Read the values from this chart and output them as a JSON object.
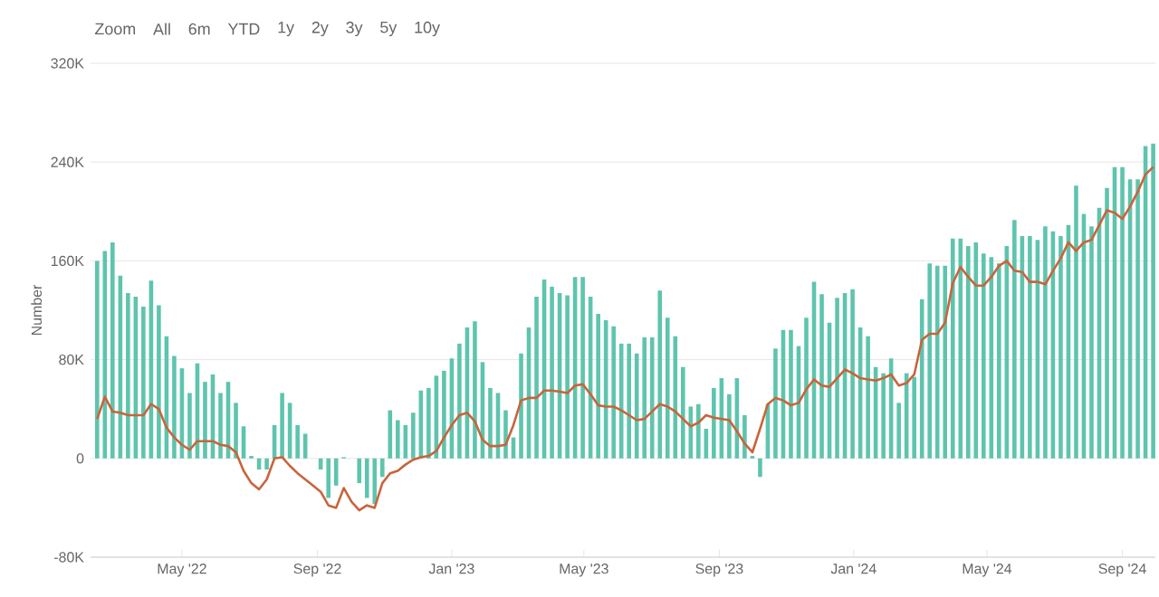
{
  "chart_data": {
    "type": "bar",
    "ylabel": "Number",
    "grid": "y",
    "annotations": [
      "Zoom",
      "All",
      "6m",
      "YTD",
      "1y",
      "2y",
      "3y",
      "5y",
      "10y"
    ],
    "xlim": [
      "2022-02-07",
      "2024-10-01"
    ],
    "xticks": [
      {
        "value": "2022-05-01",
        "label": "May '22"
      },
      {
        "value": "2022-09-01",
        "label": "Sep '22"
      },
      {
        "value": "2023-01-01",
        "label": "Jan '23"
      },
      {
        "value": "2023-05-01",
        "label": "May '23"
      },
      {
        "value": "2023-09-01",
        "label": "Sep '23"
      },
      {
        "value": "2024-01-01",
        "label": "Jan '24"
      },
      {
        "value": "2024-05-01",
        "label": "May '24"
      },
      {
        "value": "2024-09-01",
        "label": "Sep '24"
      }
    ],
    "ylim": [
      -80000,
      320000
    ],
    "yticks": [
      {
        "value": -80000,
        "label": "-80K"
      },
      0,
      {
        "value": 80000,
        "label": "80K"
      },
      {
        "value": 160000,
        "label": "160K"
      },
      {
        "value": 240000,
        "label": "240K"
      },
      {
        "value": 320000,
        "label": "320K"
      }
    ],
    "x": [
      "2022-02-13",
      "2022-02-20",
      "2022-02-27",
      "2022-03-06",
      "2022-03-13",
      "2022-03-20",
      "2022-03-27",
      "2022-04-03",
      "2022-04-10",
      "2022-04-17",
      "2022-04-24",
      "2022-05-01",
      "2022-05-08",
      "2022-05-15",
      "2022-05-22",
      "2022-05-29",
      "2022-06-05",
      "2022-06-12",
      "2022-06-19",
      "2022-06-26",
      "2022-07-03",
      "2022-07-10",
      "2022-07-17",
      "2022-07-24",
      "2022-07-31",
      "2022-08-07",
      "2022-08-14",
      "2022-08-21",
      "2022-08-28",
      "2022-09-04",
      "2022-09-11",
      "2022-09-18",
      "2022-09-25",
      "2022-10-02",
      "2022-10-09",
      "2022-10-16",
      "2022-10-23",
      "2022-10-30",
      "2022-11-06",
      "2022-11-13",
      "2022-11-20",
      "2022-11-27",
      "2022-12-04",
      "2022-12-11",
      "2022-12-18",
      "2022-12-25",
      "2023-01-01",
      "2023-01-08",
      "2023-01-15",
      "2023-01-22",
      "2023-01-29",
      "2023-02-05",
      "2023-02-12",
      "2023-02-19",
      "2023-02-26",
      "2023-03-05",
      "2023-03-12",
      "2023-03-19",
      "2023-03-26",
      "2023-04-02",
      "2023-04-09",
      "2023-04-16",
      "2023-04-23",
      "2023-04-30",
      "2023-05-07",
      "2023-05-14",
      "2023-05-21",
      "2023-05-28",
      "2023-06-04",
      "2023-06-11",
      "2023-06-18",
      "2023-06-25",
      "2023-07-02",
      "2023-07-09",
      "2023-07-16",
      "2023-07-23",
      "2023-07-30",
      "2023-08-06",
      "2023-08-13",
      "2023-08-20",
      "2023-08-27",
      "2023-09-03",
      "2023-09-10",
      "2023-09-17",
      "2023-09-24",
      "2023-10-01",
      "2023-10-08",
      "2023-10-15",
      "2023-10-22",
      "2023-10-29",
      "2023-11-05",
      "2023-11-12",
      "2023-11-19",
      "2023-11-26",
      "2023-12-03",
      "2023-12-10",
      "2023-12-17",
      "2023-12-24",
      "2023-12-31",
      "2024-01-07",
      "2024-01-14",
      "2024-01-21",
      "2024-01-28",
      "2024-02-04",
      "2024-02-11",
      "2024-02-18",
      "2024-02-25",
      "2024-03-03",
      "2024-03-10",
      "2024-03-17",
      "2024-03-24",
      "2024-03-31",
      "2024-04-07",
      "2024-04-14",
      "2024-04-21",
      "2024-04-28",
      "2024-05-05",
      "2024-05-12",
      "2024-05-19",
      "2024-05-26",
      "2024-06-02",
      "2024-06-09",
      "2024-06-16",
      "2024-06-23",
      "2024-06-30",
      "2024-07-07",
      "2024-07-14",
      "2024-07-21",
      "2024-07-28",
      "2024-08-04",
      "2024-08-11",
      "2024-08-18",
      "2024-08-25",
      "2024-09-01",
      "2024-09-08",
      "2024-09-15",
      "2024-09-22",
      "2024-09-29"
    ],
    "series": [
      {
        "color": "#5ec4ae",
        "values": [
          160000,
          168000,
          175000,
          148000,
          134000,
          131000,
          123000,
          144000,
          124000,
          99000,
          83000,
          73000,
          53000,
          77000,
          62000,
          68000,
          53000,
          62000,
          45000,
          26000,
          2000,
          -9000,
          -9000,
          27000,
          53000,
          45000,
          27000,
          20000,
          0,
          -9000,
          -32000,
          -22000,
          1000,
          0,
          -20000,
          -32000,
          -37000,
          -15000,
          39000,
          31000,
          27000,
          37000,
          55000,
          57000,
          67000,
          71000,
          81000,
          93000,
          106000,
          111000,
          78000,
          57000,
          53000,
          39000,
          17000,
          85000,
          106000,
          131000,
          145000,
          139000,
          134000,
          132000,
          147000,
          147000,
          131000,
          117000,
          112000,
          107000,
          93000,
          93000,
          85000,
          98000,
          98000,
          136000,
          114000,
          99000,
          74000,
          42000,
          44000,
          24000,
          57000,
          65000,
          52000,
          65000,
          35000,
          2000,
          -15000,
          44000,
          89000,
          104000,
          104000,
          91000,
          114000,
          143000,
          133000,
          110000,
          130000,
          134000,
          137000,
          106000,
          99000,
          74000,
          69000,
          81000,
          45000,
          69000,
          66000,
          129000,
          158000,
          156000,
          156000,
          178000,
          178000,
          172000,
          175000,
          166000,
          163000,
          158000,
          172000,
          193000,
          180000,
          180000,
          177000,
          188000,
          184000,
          180000,
          189000,
          221000,
          198000,
          188000,
          203000,
          219000,
          236000,
          236000,
          226000,
          226000,
          253000,
          255000
        ]
      },
      {
        "type": "line",
        "color": "#c8643c",
        "values": [
          32000,
          50000,
          38000,
          37000,
          35000,
          35000,
          35000,
          44000,
          40000,
          25000,
          17000,
          11000,
          7000,
          14000,
          14000,
          14000,
          11000,
          10000,
          5000,
          -10000,
          -20000,
          -25000,
          -17000,
          0,
          1000,
          -6000,
          -12000,
          -17000,
          -22000,
          -27000,
          -38000,
          -40000,
          -24000,
          -35000,
          -42000,
          -38000,
          -40000,
          -20000,
          -12000,
          -10000,
          -5000,
          -1000,
          1000,
          2000,
          6000,
          17000,
          27000,
          35000,
          37000,
          30000,
          15000,
          10000,
          10000,
          11000,
          27000,
          47000,
          49000,
          49000,
          55000,
          55000,
          54000,
          53000,
          59000,
          60000,
          52000,
          43000,
          42000,
          42000,
          39000,
          35000,
          31000,
          32000,
          38000,
          44000,
          42000,
          38000,
          32000,
          26000,
          29000,
          35000,
          33000,
          32000,
          31000,
          22000,
          12000,
          5000,
          24000,
          44000,
          49000,
          47000,
          43000,
          45000,
          56000,
          64000,
          59000,
          58000,
          65000,
          72000,
          69000,
          65000,
          64000,
          63000,
          65000,
          68000,
          59000,
          61000,
          68000,
          96000,
          101000,
          101000,
          110000,
          142000,
          155000,
          147000,
          140000,
          140000,
          147000,
          156000,
          160000,
          152000,
          151000,
          143000,
          143000,
          141000,
          152000,
          162000,
          175000,
          168000,
          175000,
          177000,
          189000,
          201000,
          199000,
          194000,
          204000,
          216000,
          230000,
          236000
        ]
      }
    ]
  }
}
